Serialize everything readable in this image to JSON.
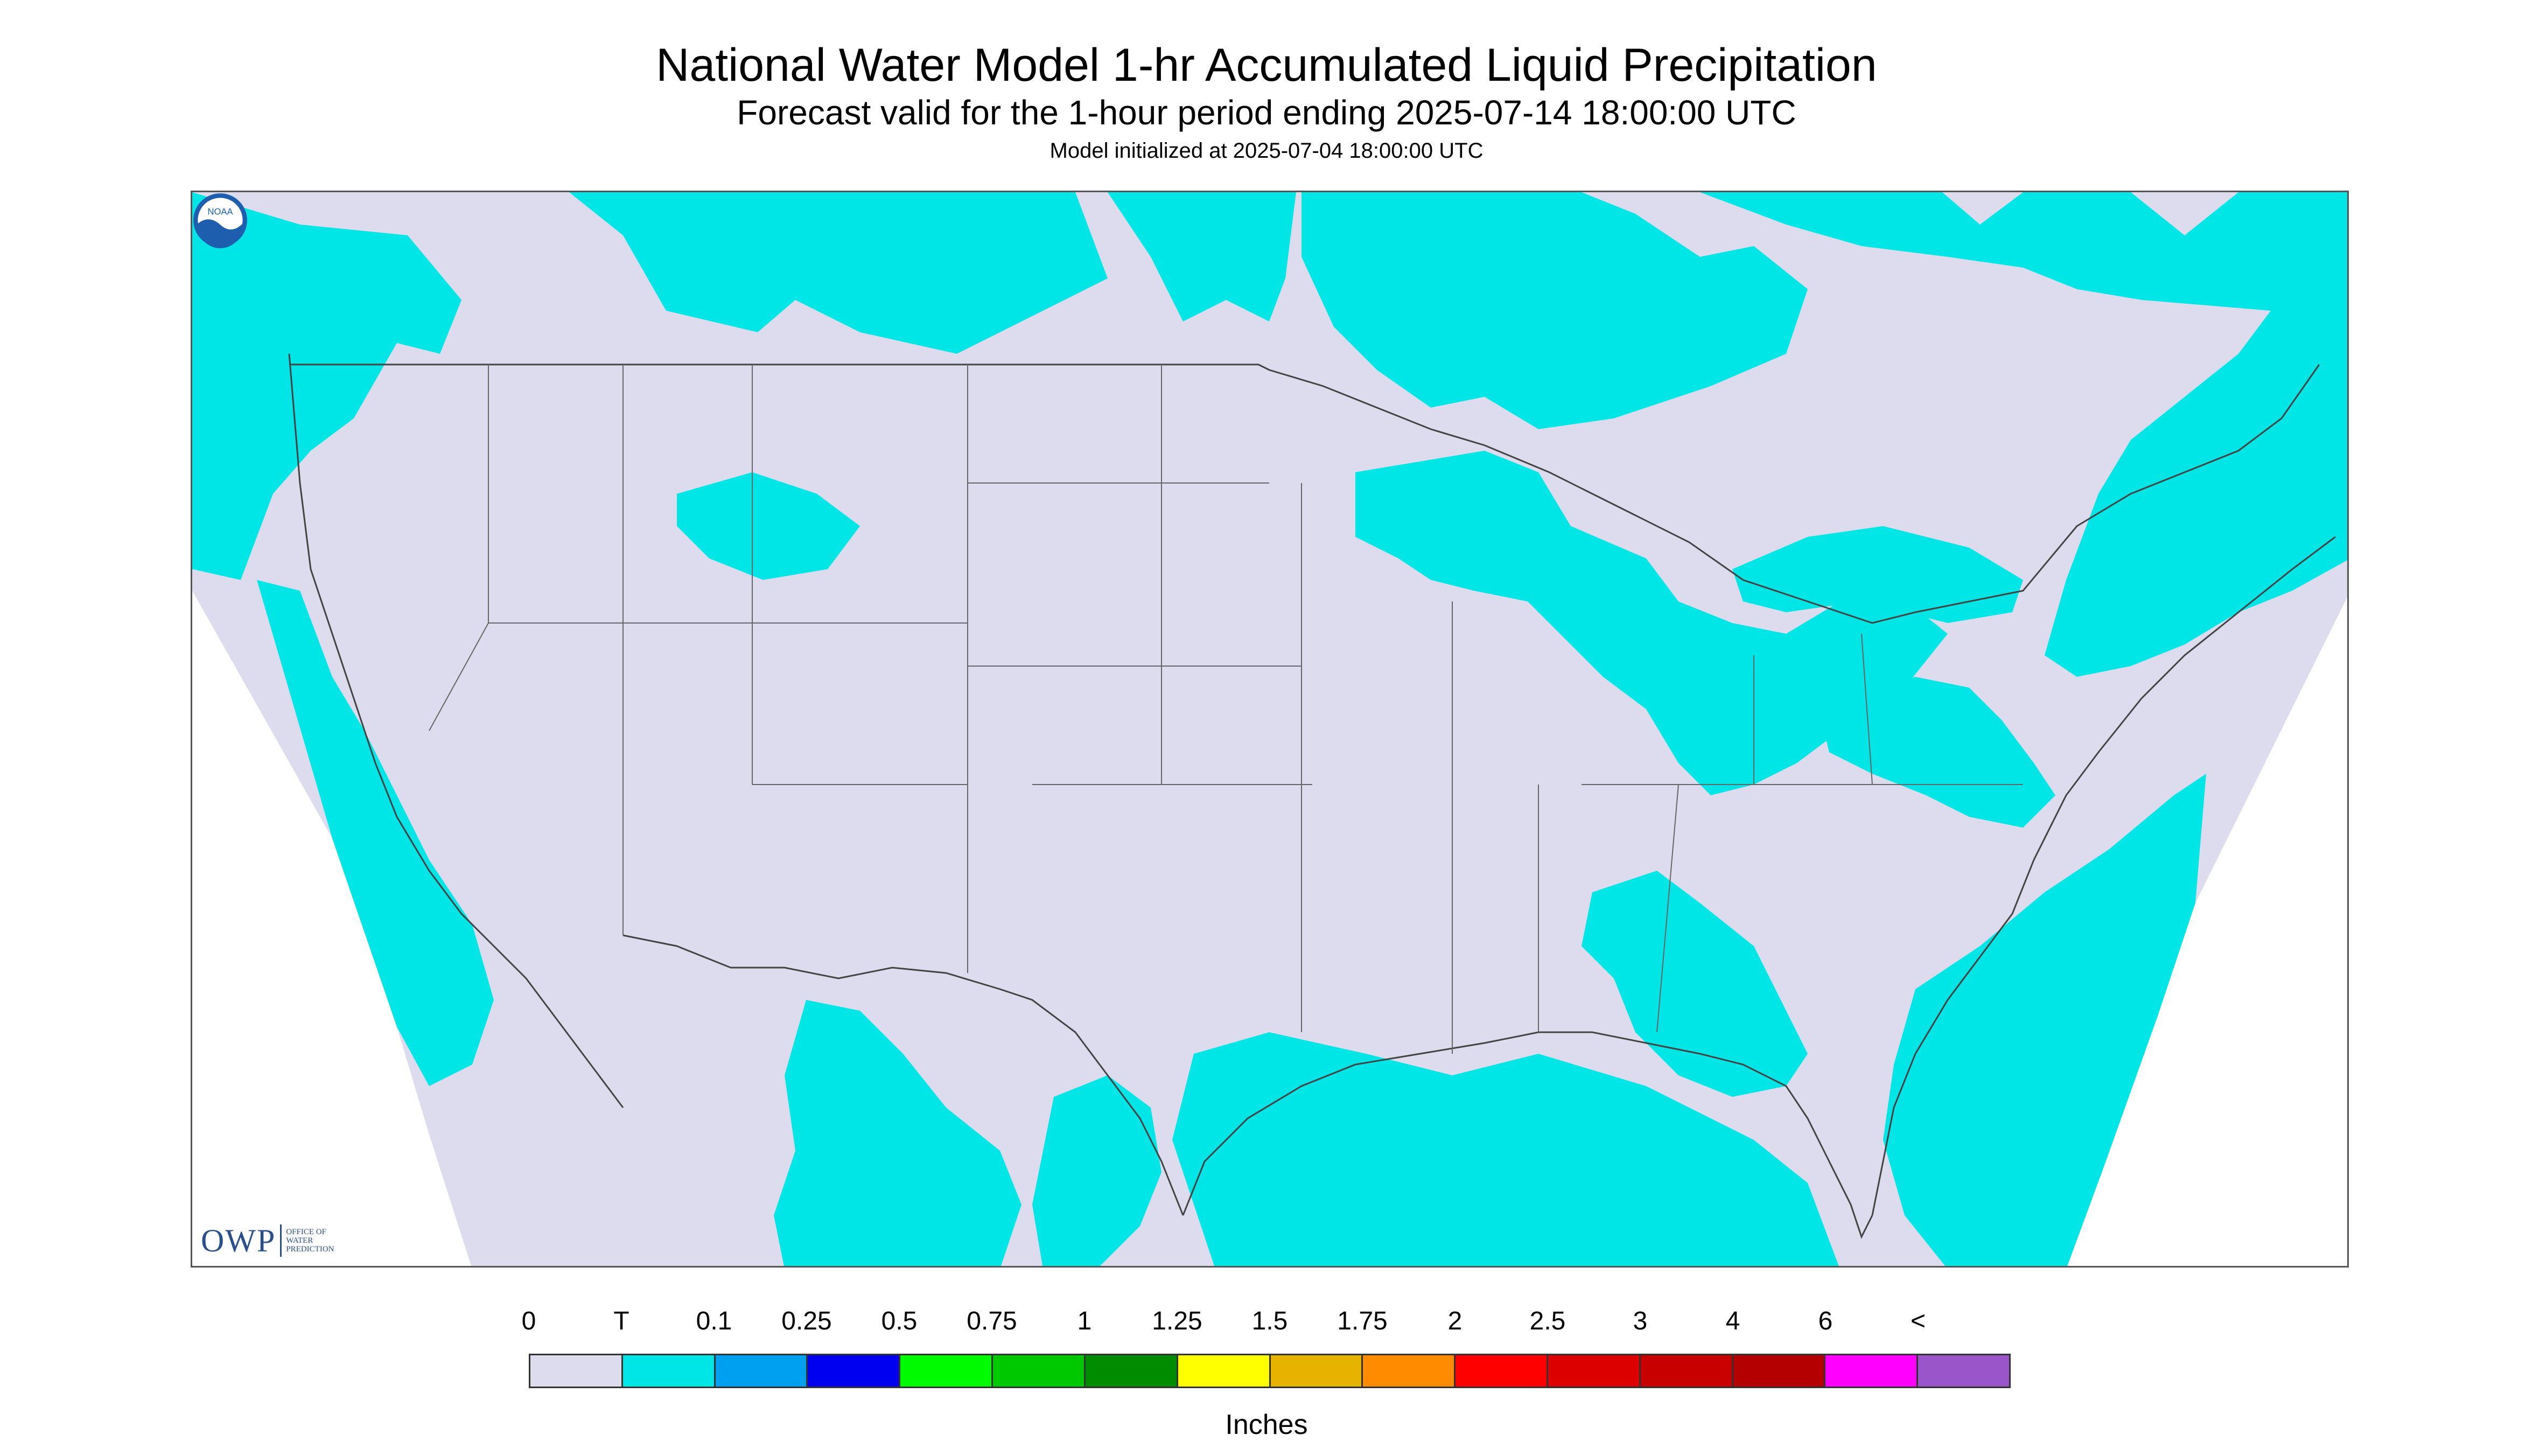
{
  "header": {
    "title": "National Water Model 1-hr Accumulated Liquid Precipitation",
    "subtitle": "Forecast valid for the 1-hour period ending 2025-07-14 18:00:00 UTC",
    "init_line": "Model initialized at 2025-07-04 18:00:00 UTC"
  },
  "logos": {
    "owp_mark": "OWP",
    "owp_text_line1": "OFFICE OF",
    "owp_text_line2": "WATER",
    "owp_text_line3": "PREDICTION",
    "noaa_text": "NOAA"
  },
  "colors": {
    "no_data": "#ffffff",
    "zero": "#dcdcee",
    "trace": "#00e6e6",
    "border": "#444444",
    "ocean": "#00e6e6"
  },
  "legend": {
    "tick_labels": [
      "0",
      "T",
      "0.1",
      "0.25",
      "0.5",
      "0.75",
      "1",
      "1.25",
      "1.5",
      "1.75",
      "2",
      "2.5",
      "3",
      "4",
      "6",
      "<"
    ],
    "swatch_colors": [
      "#dcdcee",
      "#00e6e6",
      "#00a0f0",
      "#0000f0",
      "#00fa00",
      "#00c800",
      "#008c00",
      "#ffff00",
      "#e6b400",
      "#ff8c00",
      "#ff0000",
      "#dc0000",
      "#c80000",
      "#b40000",
      "#ff00ff",
      "#9955c9"
    ],
    "units": "Inches"
  }
}
